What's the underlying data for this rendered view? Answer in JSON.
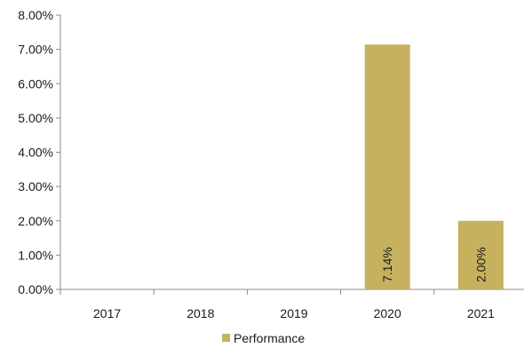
{
  "chart_data": {
    "type": "bar",
    "categories": [
      "2017",
      "2018",
      "2019",
      "2020",
      "2021"
    ],
    "series": [
      {
        "name": "Performance",
        "values": [
          0,
          0,
          0,
          7.14,
          2.0
        ],
        "color": "#c6b15e"
      }
    ],
    "data_labels": [
      "",
      "",
      "",
      "7.14%",
      "2.00%"
    ],
    "ylim": [
      0,
      8
    ],
    "yticks": [
      0,
      1,
      2,
      3,
      4,
      5,
      6,
      7,
      8
    ],
    "ytick_labels": [
      "0.00%",
      "1.00%",
      "2.00%",
      "3.00%",
      "4.00%",
      "5.00%",
      "6.00%",
      "7.00%",
      "8.00%"
    ],
    "legend_position": "bottom",
    "grid": false
  }
}
